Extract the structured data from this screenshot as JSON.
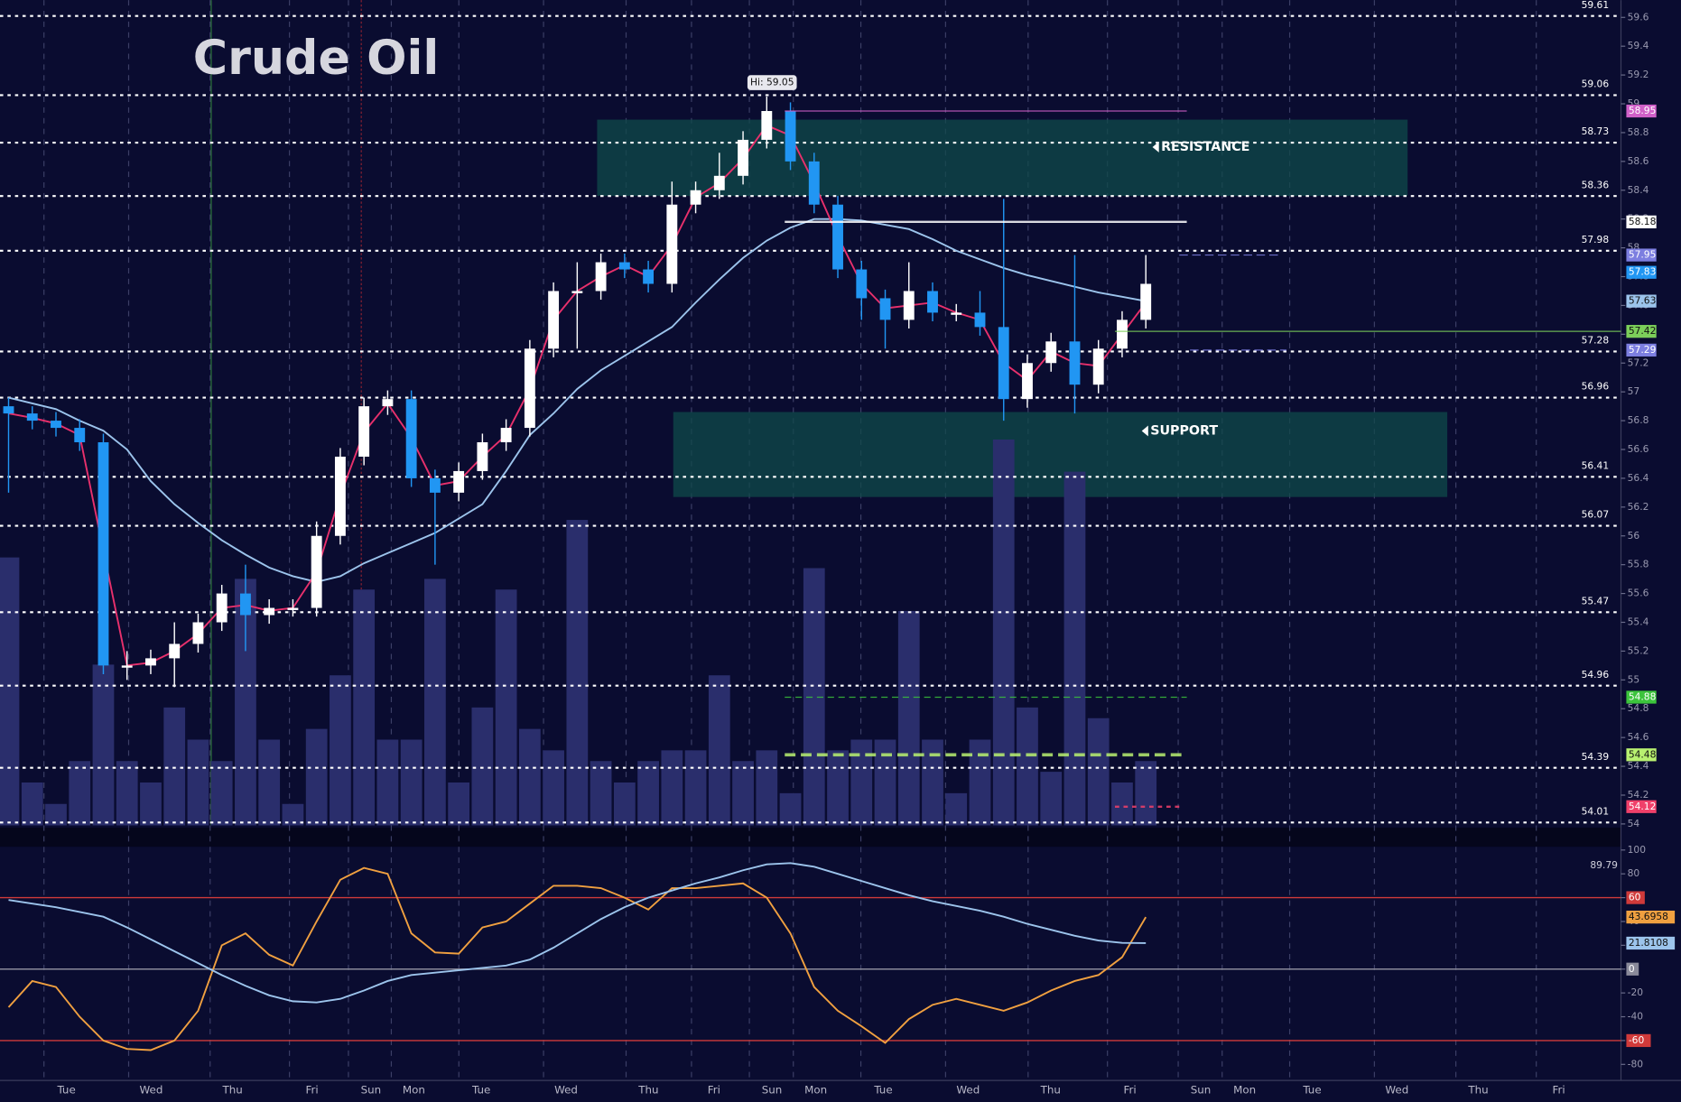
{
  "chart_data": [
    {
      "type": "candlestick",
      "title": "Crude Oil",
      "ylim": [
        53.99,
        59.72
      ],
      "yticks": [
        54,
        54.2,
        54.4,
        54.6,
        54.8,
        55,
        55.2,
        55.4,
        55.6,
        55.8,
        56,
        56.2,
        56.4,
        56.6,
        56.8,
        57,
        57.2,
        57.4,
        57.6,
        57.8,
        58,
        58.2,
        58.4,
        58.6,
        58.8,
        59,
        59.2,
        59.4,
        59.6
      ],
      "x_labels": [
        "Tue",
        "Wed",
        "Thu",
        "Fri",
        "Sun",
        "Mon",
        "Tue",
        "Wed",
        "Thu",
        "Fri",
        "Sun",
        "Mon",
        "Tue",
        "Wed",
        "Thu",
        "Fri",
        "Sun",
        "Mon",
        "Tue",
        "Wed",
        "Thu",
        "Fri"
      ],
      "up_color": "#ffffff",
      "down_color": "#2196f3",
      "volume_color": "#2a2e6c",
      "open": [
        56.9,
        56.85,
        56.8,
        56.75,
        56.65,
        55.1,
        55.1,
        55.15,
        55.25,
        55.4,
        55.6,
        55.45,
        55.5,
        55.5,
        56.0,
        56.55,
        56.9,
        56.95,
        56.4,
        56.3,
        56.45,
        56.65,
        56.75,
        57.3,
        57.7,
        57.7,
        57.9,
        57.85,
        57.75,
        58.3,
        58.4,
        58.5,
        58.75,
        58.95,
        58.6,
        58.3,
        57.85,
        57.65,
        57.5,
        57.7,
        57.55,
        57.55,
        57.45,
        56.95,
        57.2,
        57.35,
        57.05,
        57.3,
        57.5
      ],
      "high": [
        56.96,
        56.9,
        56.86,
        56.81,
        56.71,
        55.2,
        55.21,
        55.4,
        55.46,
        55.66,
        55.8,
        55.56,
        55.56,
        56.1,
        56.61,
        56.96,
        57.01,
        57.01,
        56.46,
        56.51,
        56.71,
        56.81,
        57.36,
        57.76,
        57.9,
        57.96,
        57.96,
        57.91,
        58.46,
        58.46,
        58.66,
        58.81,
        59.05,
        59.01,
        58.66,
        58.36,
        57.91,
        57.71,
        57.9,
        57.76,
        57.61,
        57.7,
        58.34,
        57.26,
        57.41,
        57.95,
        57.36,
        57.56,
        57.95
      ],
      "low": [
        56.3,
        56.74,
        56.69,
        56.59,
        55.04,
        55.0,
        55.04,
        54.95,
        55.19,
        55.34,
        55.2,
        55.39,
        55.44,
        55.44,
        55.94,
        56.49,
        56.84,
        56.34,
        55.8,
        56.24,
        56.39,
        56.59,
        56.69,
        57.24,
        57.3,
        57.64,
        57.79,
        57.69,
        57.69,
        58.24,
        58.34,
        58.44,
        58.69,
        58.54,
        58.24,
        57.79,
        57.5,
        57.3,
        57.44,
        57.49,
        57.49,
        57.39,
        56.8,
        56.89,
        57.14,
        56.85,
        56.99,
        57.24,
        57.44
      ],
      "close": [
        56.85,
        56.8,
        56.75,
        56.65,
        55.1,
        55.1,
        55.15,
        55.25,
        55.4,
        55.6,
        55.45,
        55.5,
        55.5,
        56.0,
        56.55,
        56.9,
        56.95,
        56.4,
        56.3,
        56.45,
        56.65,
        56.75,
        57.3,
        57.7,
        57.7,
        57.9,
        57.85,
        57.75,
        58.3,
        58.4,
        58.5,
        58.75,
        58.95,
        58.6,
        58.3,
        57.85,
        57.65,
        57.5,
        57.7,
        57.55,
        57.55,
        57.45,
        56.95,
        57.2,
        57.35,
        57.05,
        57.3,
        57.5,
        57.75
      ],
      "volume": [
        250,
        40,
        20,
        60,
        150,
        60,
        40,
        110,
        80,
        60,
        230,
        80,
        20,
        90,
        140,
        220,
        80,
        80,
        230,
        40,
        110,
        220,
        90,
        70,
        285,
        60,
        40,
        60,
        70,
        70,
        140,
        60,
        70,
        30,
        240,
        70,
        80,
        80,
        200,
        80,
        30,
        80,
        360,
        110,
        50,
        330,
        100,
        40,
        60
      ],
      "vlim": [
        0,
        770
      ],
      "lines": [
        {
          "color": "#9cc4ec",
          "values": [
            56.96,
            56.92,
            56.88,
            56.8,
            56.73,
            56.6,
            56.38,
            56.22,
            56.09,
            55.97,
            55.87,
            55.78,
            55.72,
            55.68,
            55.72,
            55.81,
            55.88,
            55.95,
            56.02,
            56.12,
            56.22,
            56.45,
            56.7,
            56.85,
            57.02,
            57.15,
            57.25,
            57.35,
            57.45,
            57.62,
            57.78,
            57.93,
            58.05,
            58.14,
            58.2,
            58.2,
            58.19,
            58.16,
            58.13,
            58.06,
            57.98,
            57.92,
            57.86,
            57.81,
            57.77,
            57.73,
            57.69,
            57.66,
            57.63
          ]
        },
        {
          "color": "#e8306c",
          "values": [
            56.85,
            56.82,
            56.78,
            56.7,
            55.9,
            55.1,
            55.12,
            55.2,
            55.32,
            55.5,
            55.52,
            55.48,
            55.5,
            55.75,
            56.28,
            56.72,
            56.92,
            56.68,
            56.35,
            56.38,
            56.55,
            56.7,
            57.02,
            57.5,
            57.7,
            57.8,
            57.88,
            57.8,
            58.02,
            58.35,
            58.45,
            58.62,
            58.85,
            58.78,
            58.45,
            58.08,
            57.75,
            57.58,
            57.6,
            57.62,
            57.55,
            57.5,
            57.2,
            57.08,
            57.28,
            57.2,
            57.18,
            57.4,
            57.62
          ]
        }
      ],
      "levels": [
        59.61,
        59.06,
        58.73,
        58.36,
        57.98,
        57.28,
        56.96,
        56.41,
        56.07,
        55.47,
        54.96,
        54.39,
        54.01
      ],
      "badges": [
        {
          "value": 58.95,
          "color": "#d060c8"
        },
        {
          "value": 58.18,
          "color": "#ffffff"
        },
        {
          "value": 57.95,
          "color": "#7c7ee0"
        },
        {
          "value": 57.83,
          "color": "#2196f3"
        },
        {
          "value": 57.63,
          "color": "#9cc4ec"
        },
        {
          "value": 57.42,
          "color": "#7ccf5a"
        },
        {
          "value": 57.29,
          "color": "#7c7ee0"
        },
        {
          "value": 54.88,
          "color": "#3cc43c"
        },
        {
          "value": 54.48,
          "color": "#b8f070"
        },
        {
          "value": 54.12,
          "color": "#f0406a"
        }
      ],
      "zones": [
        {
          "label": "RESISTANCE",
          "from": 58.36,
          "to": 58.89
        },
        {
          "label": "SUPPORT",
          "from": 56.27,
          "to": 56.86
        }
      ],
      "annotation": "Hi: 59.05"
    },
    {
      "type": "line",
      "ylim": [
        -90.8,
        102.7
      ],
      "yticks": [
        100,
        80,
        60,
        40,
        20,
        0,
        -20,
        -40,
        -60,
        -80
      ],
      "series": [
        {
          "color": "#f0a040",
          "values": [
            -32,
            -10,
            -15,
            -40,
            -60,
            -67,
            -68,
            -60,
            -35,
            20,
            30,
            12,
            3,
            40,
            75,
            85,
            80,
            30,
            14,
            13,
            35,
            40,
            55,
            70,
            70,
            68,
            60,
            50,
            68,
            68,
            70,
            72,
            60,
            30,
            -15,
            -35,
            -48,
            -62,
            -42,
            -30,
            -25,
            -30,
            -35,
            -28,
            -18,
            -10,
            -5,
            10,
            43.6958
          ]
        },
        {
          "color": "#9cc4ec",
          "values": [
            58,
            55,
            52,
            48,
            44,
            35,
            25,
            15,
            5,
            -5,
            -14,
            -22,
            -27,
            -28,
            -25,
            -18,
            -10,
            -5,
            -3,
            -1,
            1,
            3,
            8,
            18,
            30,
            42,
            52,
            60,
            66,
            72,
            77,
            83,
            88,
            89,
            86,
            80,
            74,
            68,
            62,
            57,
            53,
            49,
            44,
            38,
            33,
            28,
            24,
            22,
            21.8108
          ]
        }
      ],
      "levels": [
        {
          "value": 60,
          "color": "#d03a3a"
        },
        {
          "value": 0,
          "color": "#8a8a9a"
        },
        {
          "value": -60,
          "color": "#d03a3a"
        }
      ],
      "badges": [
        {
          "value": 89.79,
          "color": "none"
        },
        {
          "value": 60,
          "color": "#d03a3a"
        },
        {
          "value": 43.6958,
          "color": "#f0a040"
        },
        {
          "value": 21.8108,
          "color": "#9cc4ec"
        },
        {
          "value": 0,
          "color": "#8a8a9a"
        },
        {
          "value": -60,
          "color": "#d03a3a"
        }
      ]
    }
  ]
}
